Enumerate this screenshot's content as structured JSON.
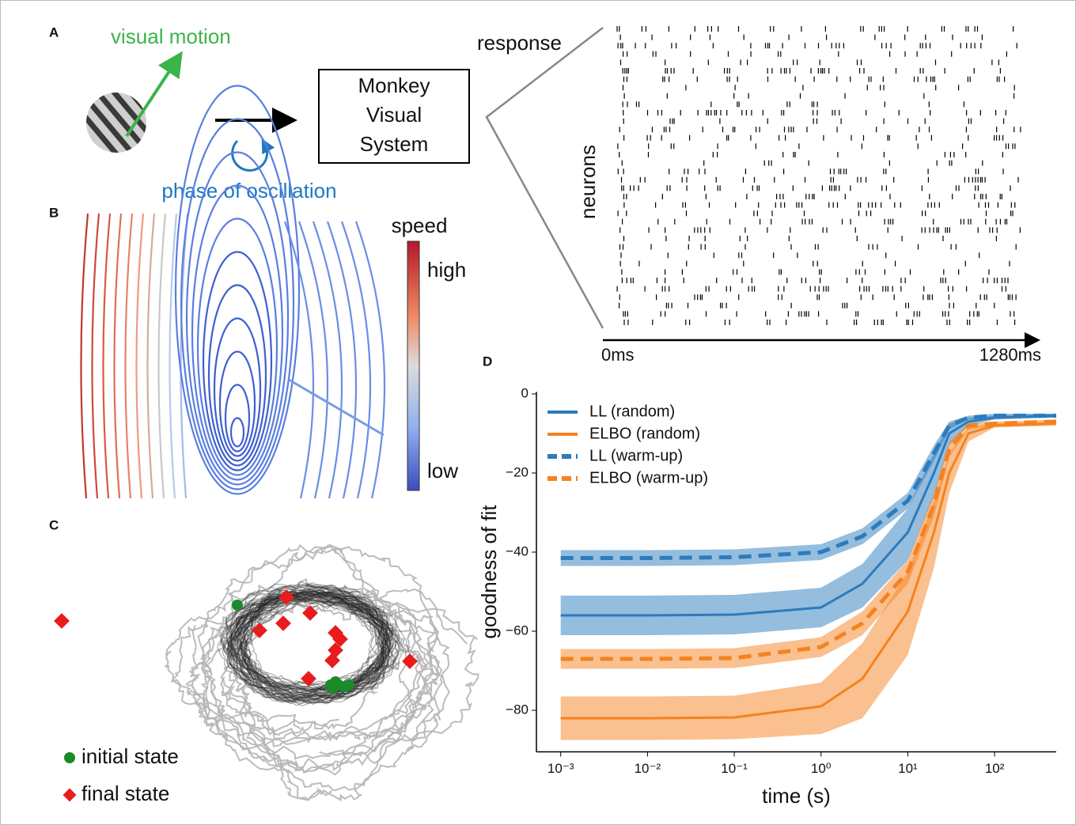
{
  "panels": {
    "A": {
      "label": "A",
      "stimulus_label": "visual motion",
      "rotation_label": "phase of oscillation",
      "box_lines": [
        "Monkey",
        "Visual",
        "System"
      ],
      "response_label": "response",
      "y_label": "neurons",
      "time_start": "0ms",
      "time_end": "1280ms"
    },
    "B": {
      "label": "B",
      "colorbar_title": "speed",
      "colorbar_high": "high",
      "colorbar_low": "low"
    },
    "C": {
      "label": "C",
      "legend": [
        "initial state",
        "final state"
      ]
    },
    "D": {
      "label": "D"
    }
  },
  "chart_data": {
    "type": "line",
    "xlabel": "time (s)",
    "ylabel": "goodness of fit",
    "xscale": "log",
    "legend": "upper left",
    "xlim": [
      0.000525,
      513
    ],
    "ylim": [
      -90.5,
      0.5
    ],
    "xticks": [
      {
        "value": 0.001,
        "label": "10⁻³"
      },
      {
        "value": 0.01,
        "label": "10⁻²"
      },
      {
        "value": 0.1,
        "label": "10⁻¹"
      },
      {
        "value": 1,
        "label": "10⁰"
      },
      {
        "value": 10,
        "label": "10¹"
      },
      {
        "value": 100,
        "label": "10²"
      }
    ],
    "yticks": [
      {
        "value": -80,
        "label": "−80"
      },
      {
        "value": -60,
        "label": "−60"
      },
      {
        "value": -40,
        "label": "−40"
      },
      {
        "value": -20,
        "label": "−20"
      },
      {
        "value": 0,
        "label": "0"
      }
    ],
    "x": [
      0.001,
      0.01,
      0.1,
      1,
      3,
      10,
      20,
      30,
      50,
      100,
      513
    ],
    "series": [
      {
        "name": "LL (random)",
        "color": "#2c7bbd",
        "dash": false,
        "values": [
          -56,
          -56,
          -55.8,
          -54,
          -48,
          -35,
          -20,
          -10,
          -7,
          -6,
          -5.5
        ],
        "lower": [
          -61,
          -61,
          -60.8,
          -59,
          -54,
          -42,
          -26,
          -13,
          -8,
          -6.5,
          -6
        ],
        "upper": [
          -51,
          -51,
          -50.8,
          -49,
          -43,
          -29,
          -15,
          -7.5,
          -6,
          -5.5,
          -5
        ]
      },
      {
        "name": "ELBO (random)",
        "color": "#f5821f",
        "dash": false,
        "values": [
          -82,
          -82,
          -81.8,
          -79,
          -72,
          -55,
          -35,
          -20,
          -10,
          -8,
          -7.5
        ],
        "lower": [
          -87.5,
          -87.5,
          -87.3,
          -86,
          -82,
          -66,
          -44,
          -25,
          -12,
          -8.5,
          -8
        ],
        "upper": [
          -76.5,
          -76.5,
          -76.3,
          -73,
          -63,
          -45,
          -27,
          -15,
          -8.5,
          -7.5,
          -7
        ]
      },
      {
        "name": "LL (warm-up)",
        "color": "#2c7bbd",
        "dash": true,
        "values": [
          -41.5,
          -41.5,
          -41.3,
          -40,
          -36,
          -27,
          -15,
          -8,
          -6,
          -5.5,
          -5.5
        ],
        "lower": [
          -43.5,
          -43.5,
          -43.3,
          -42,
          -38,
          -29,
          -17,
          -9,
          -6.5,
          -6,
          -6
        ],
        "upper": [
          -39.5,
          -39.5,
          -39.3,
          -38,
          -34,
          -25,
          -13,
          -7,
          -5.5,
          -5,
          -5
        ]
      },
      {
        "name": "ELBO (warm-up)",
        "color": "#f5821f",
        "dash": true,
        "values": [
          -67,
          -67,
          -66.8,
          -64,
          -58,
          -45,
          -28,
          -14,
          -8,
          -7.5,
          -7
        ],
        "lower": [
          -69.5,
          -69.5,
          -69.3,
          -66.5,
          -61,
          -48,
          -31,
          -16,
          -9,
          -8,
          -7.5
        ],
        "upper": [
          -64.5,
          -64.5,
          -64.3,
          -61.5,
          -55,
          -42,
          -25,
          -12,
          -7.5,
          -7,
          -6.5
        ]
      }
    ]
  }
}
